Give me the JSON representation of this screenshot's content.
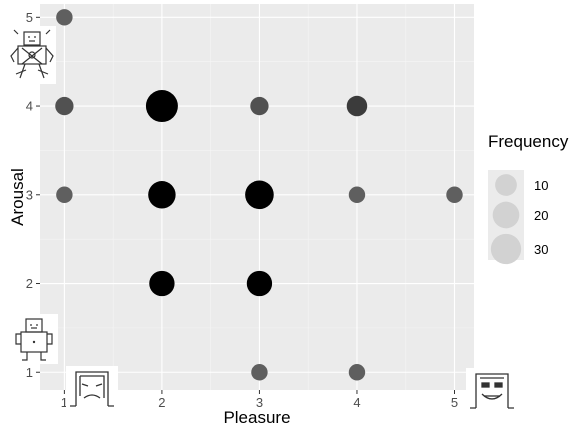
{
  "chart_data": {
    "type": "scatter",
    "title": "",
    "xlabel": "Pleasure",
    "ylabel": "Arousal",
    "xlim": [
      0.75,
      5.2
    ],
    "ylim": [
      0.8,
      5.15
    ],
    "x_ticks": [
      "1",
      "2",
      "3",
      "4",
      "5"
    ],
    "y_ticks": [
      "1",
      "2",
      "3",
      "4",
      "5"
    ],
    "grid": true,
    "legend": {
      "title": "Frequency",
      "position": "right",
      "entries": [
        "10",
        "20",
        "30"
      ]
    },
    "points": [
      {
        "x": 1,
        "y": 5,
        "frequency": 3
      },
      {
        "x": 1,
        "y": 4,
        "frequency": 5
      },
      {
        "x": 1,
        "y": 3,
        "frequency": 3
      },
      {
        "x": 2,
        "y": 4,
        "frequency": 35
      },
      {
        "x": 2,
        "y": 3,
        "frequency": 22
      },
      {
        "x": 2,
        "y": 2,
        "frequency": 17
      },
      {
        "x": 3,
        "y": 4,
        "frequency": 5
      },
      {
        "x": 3,
        "y": 3,
        "frequency": 25
      },
      {
        "x": 3,
        "y": 2,
        "frequency": 17
      },
      {
        "x": 3,
        "y": 1,
        "frequency": 3
      },
      {
        "x": 4,
        "y": 4,
        "frequency": 8
      },
      {
        "x": 4,
        "y": 3,
        "frequency": 3
      },
      {
        "x": 4,
        "y": 1,
        "frequency": 3
      },
      {
        "x": 5,
        "y": 3,
        "frequency": 3
      }
    ]
  },
  "colors": {
    "panel": "#ebebeb",
    "grid_major": "#ffffff",
    "grid_minor": "#f5f5f5",
    "point_low": "#6e6e6e",
    "point_high": "#000000",
    "legend_key": "#d2d2d2"
  },
  "icons": [
    "sam-arousal-high-icon",
    "sam-arousal-low-icon",
    "sam-pleasure-low-icon",
    "sam-pleasure-high-icon"
  ]
}
